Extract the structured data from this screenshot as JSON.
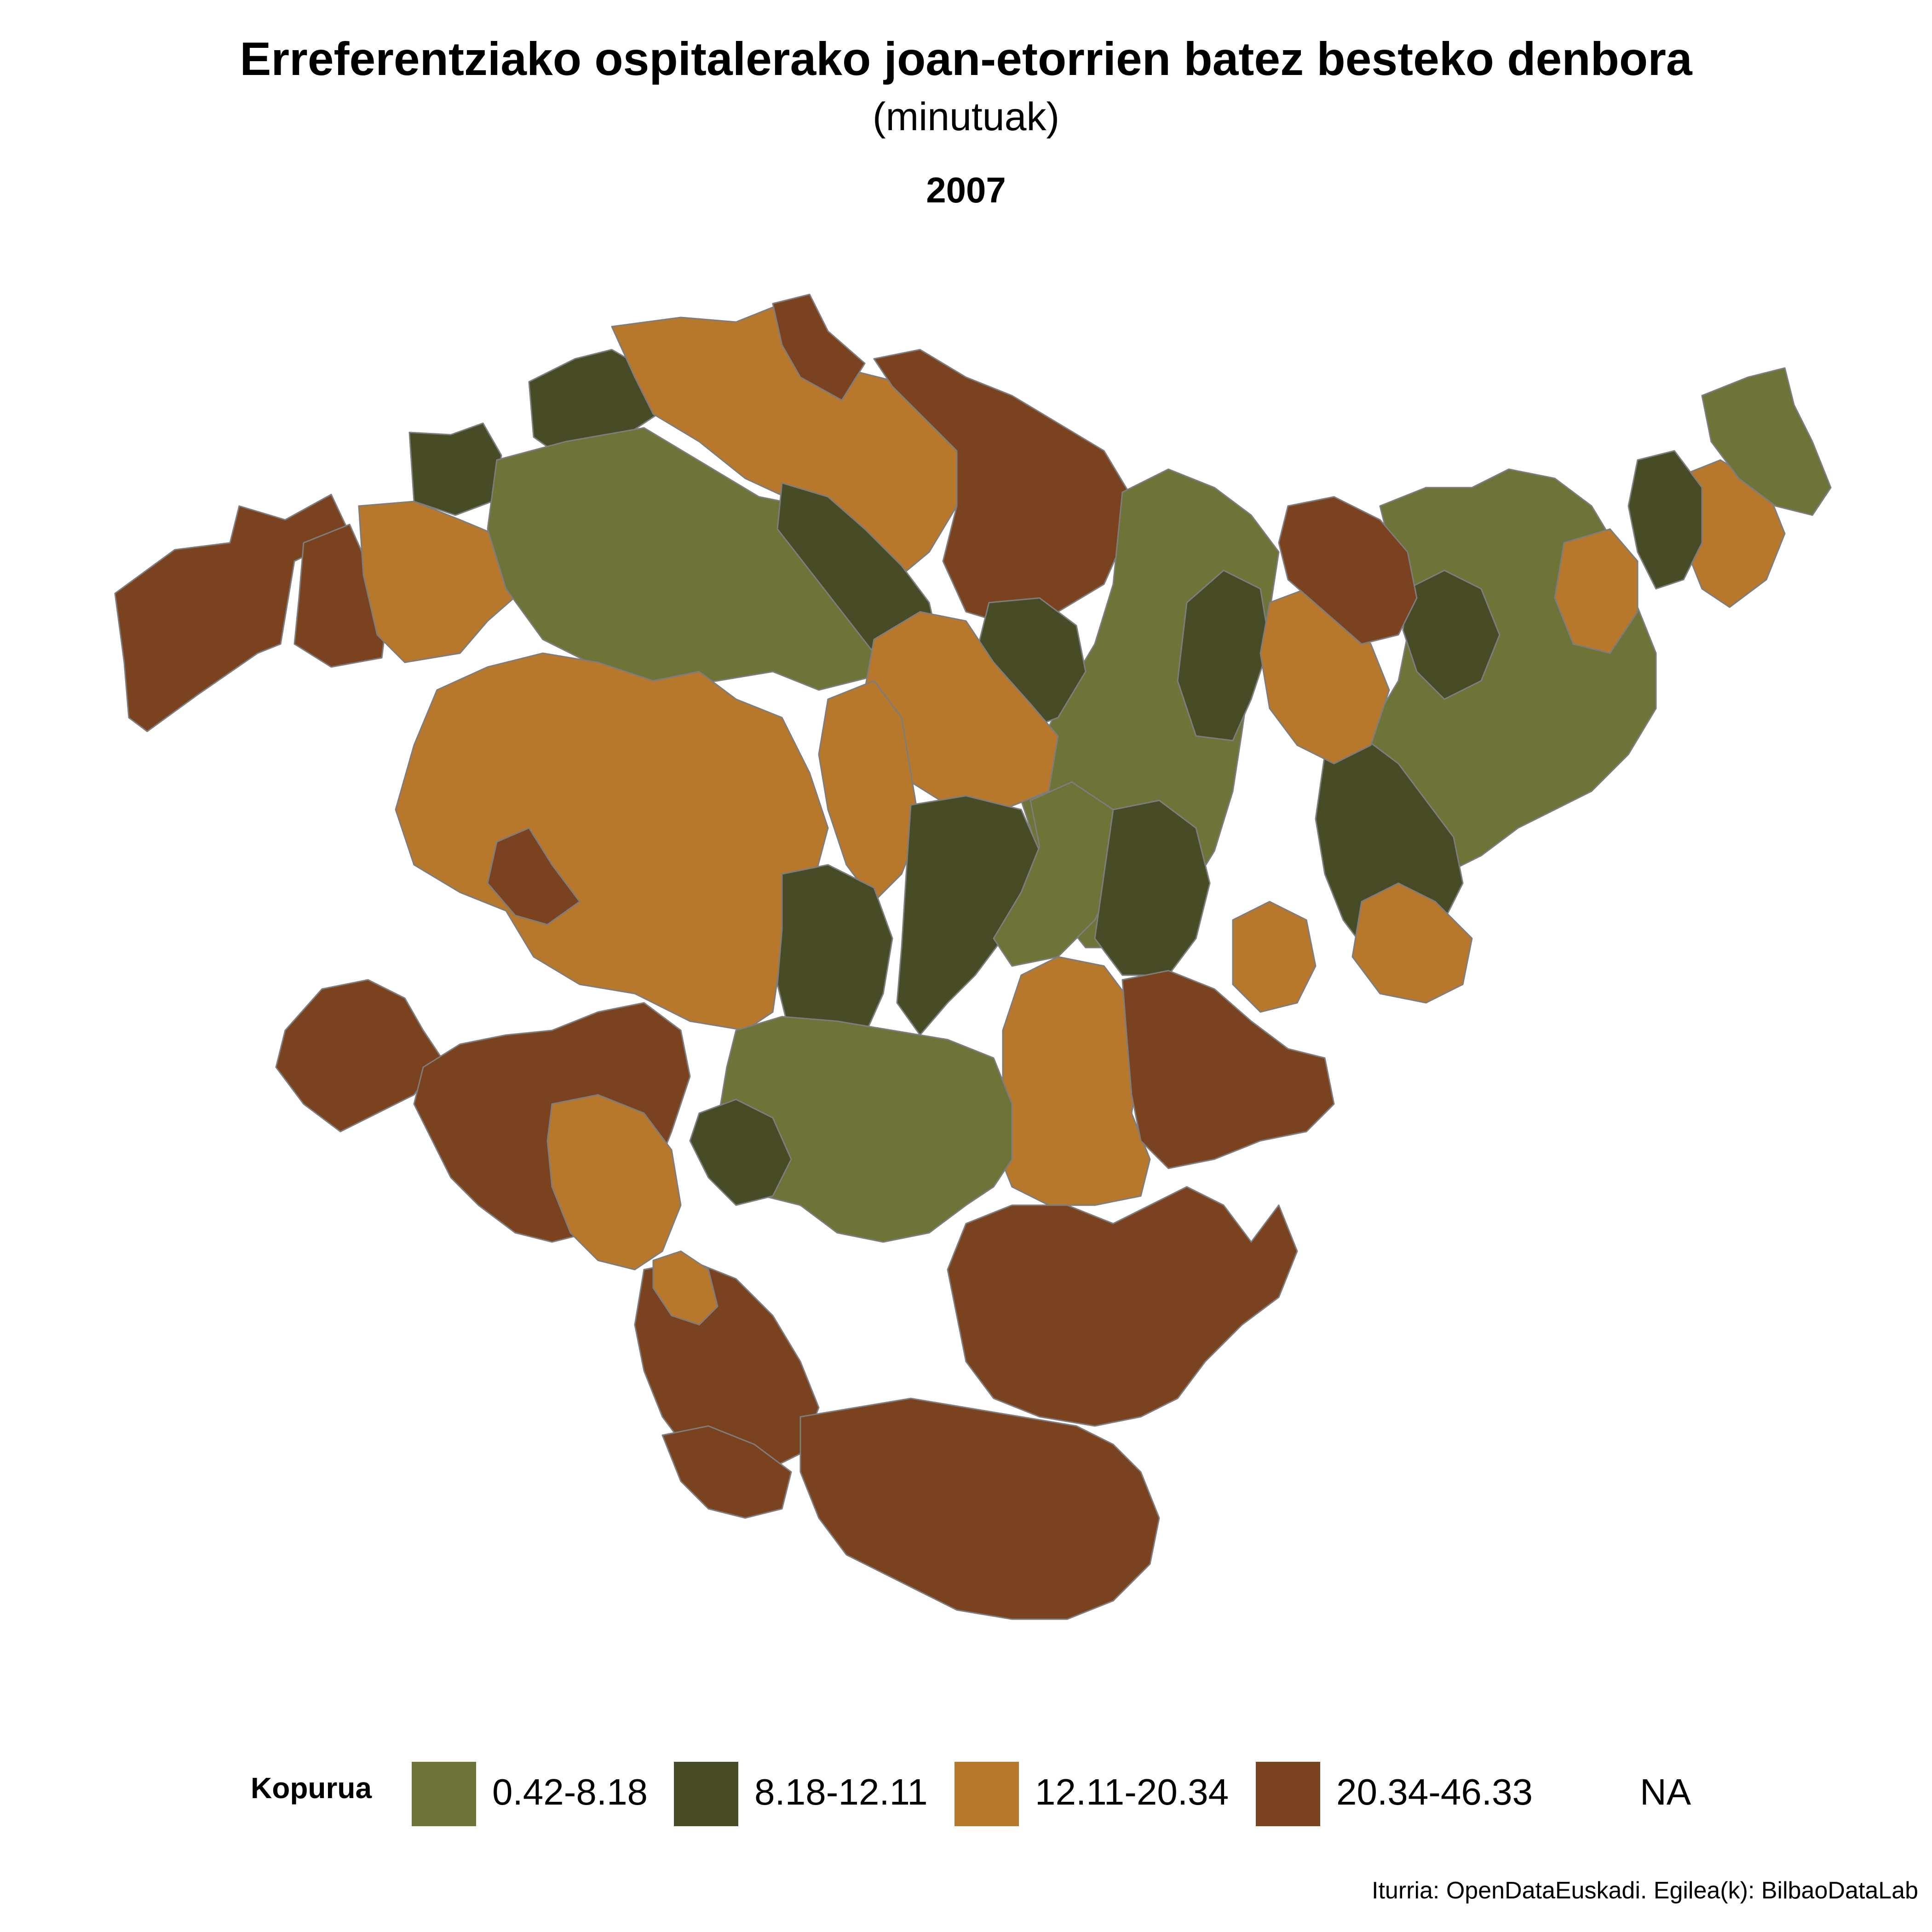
{
  "header": {
    "title": "Erreferentziako ospitalerako joan-etorrien batez besteko denbora",
    "subtitle": "(minutuak)",
    "year": "2007"
  },
  "legend": {
    "title": "Kopurua",
    "items": [
      {
        "label": "0.42-8.18",
        "color": "#6E7437"
      },
      {
        "label": "8.18-12.11",
        "color": "#474B26"
      },
      {
        "label": "12.11-20.34",
        "color": "#B8782C"
      },
      {
        "label": "20.34-46.33",
        "color": "#7B421F"
      },
      {
        "label": "NA",
        "color": "#FFFFFF"
      }
    ]
  },
  "caption": "Iturria: OpenDataEuskadi. Egilea(k): BilbaoDataLab"
}
